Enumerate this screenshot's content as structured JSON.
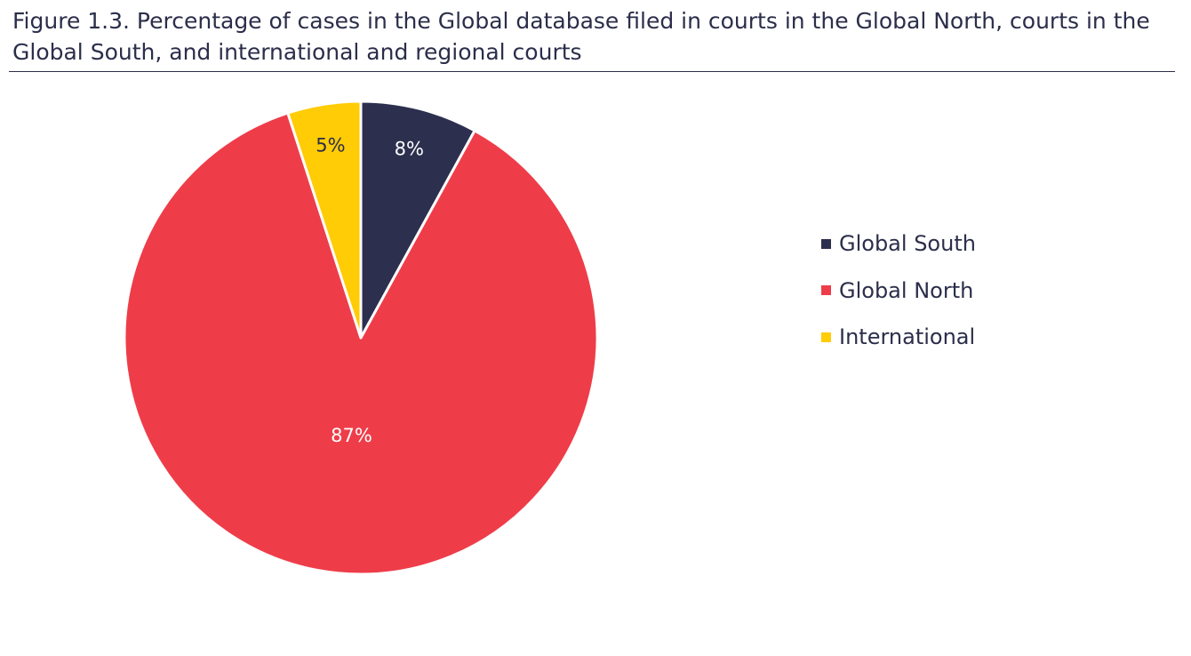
{
  "chart_data": {
    "type": "pie",
    "title": "Figure 1.3. Percentage of cases in the Global database filed in courts in the Global North, courts in the Global South, and international and regional courts",
    "slices": [
      {
        "name": "Global South",
        "value": 8,
        "label": "8%",
        "color": "#2c2f4e",
        "label_color": "#ffffff"
      },
      {
        "name": "Global North",
        "value": 87,
        "label": "87%",
        "color": "#ee3d49",
        "label_color": "#ffffff"
      },
      {
        "name": "International",
        "value": 5,
        "label": "5%",
        "color": "#ffcc05",
        "label_color": "#2b2e4a"
      }
    ],
    "start": "12 o'clock",
    "direction": "clockwise",
    "legend": {
      "position": "right",
      "entries": [
        "Global South",
        "Global North",
        "International"
      ]
    }
  }
}
